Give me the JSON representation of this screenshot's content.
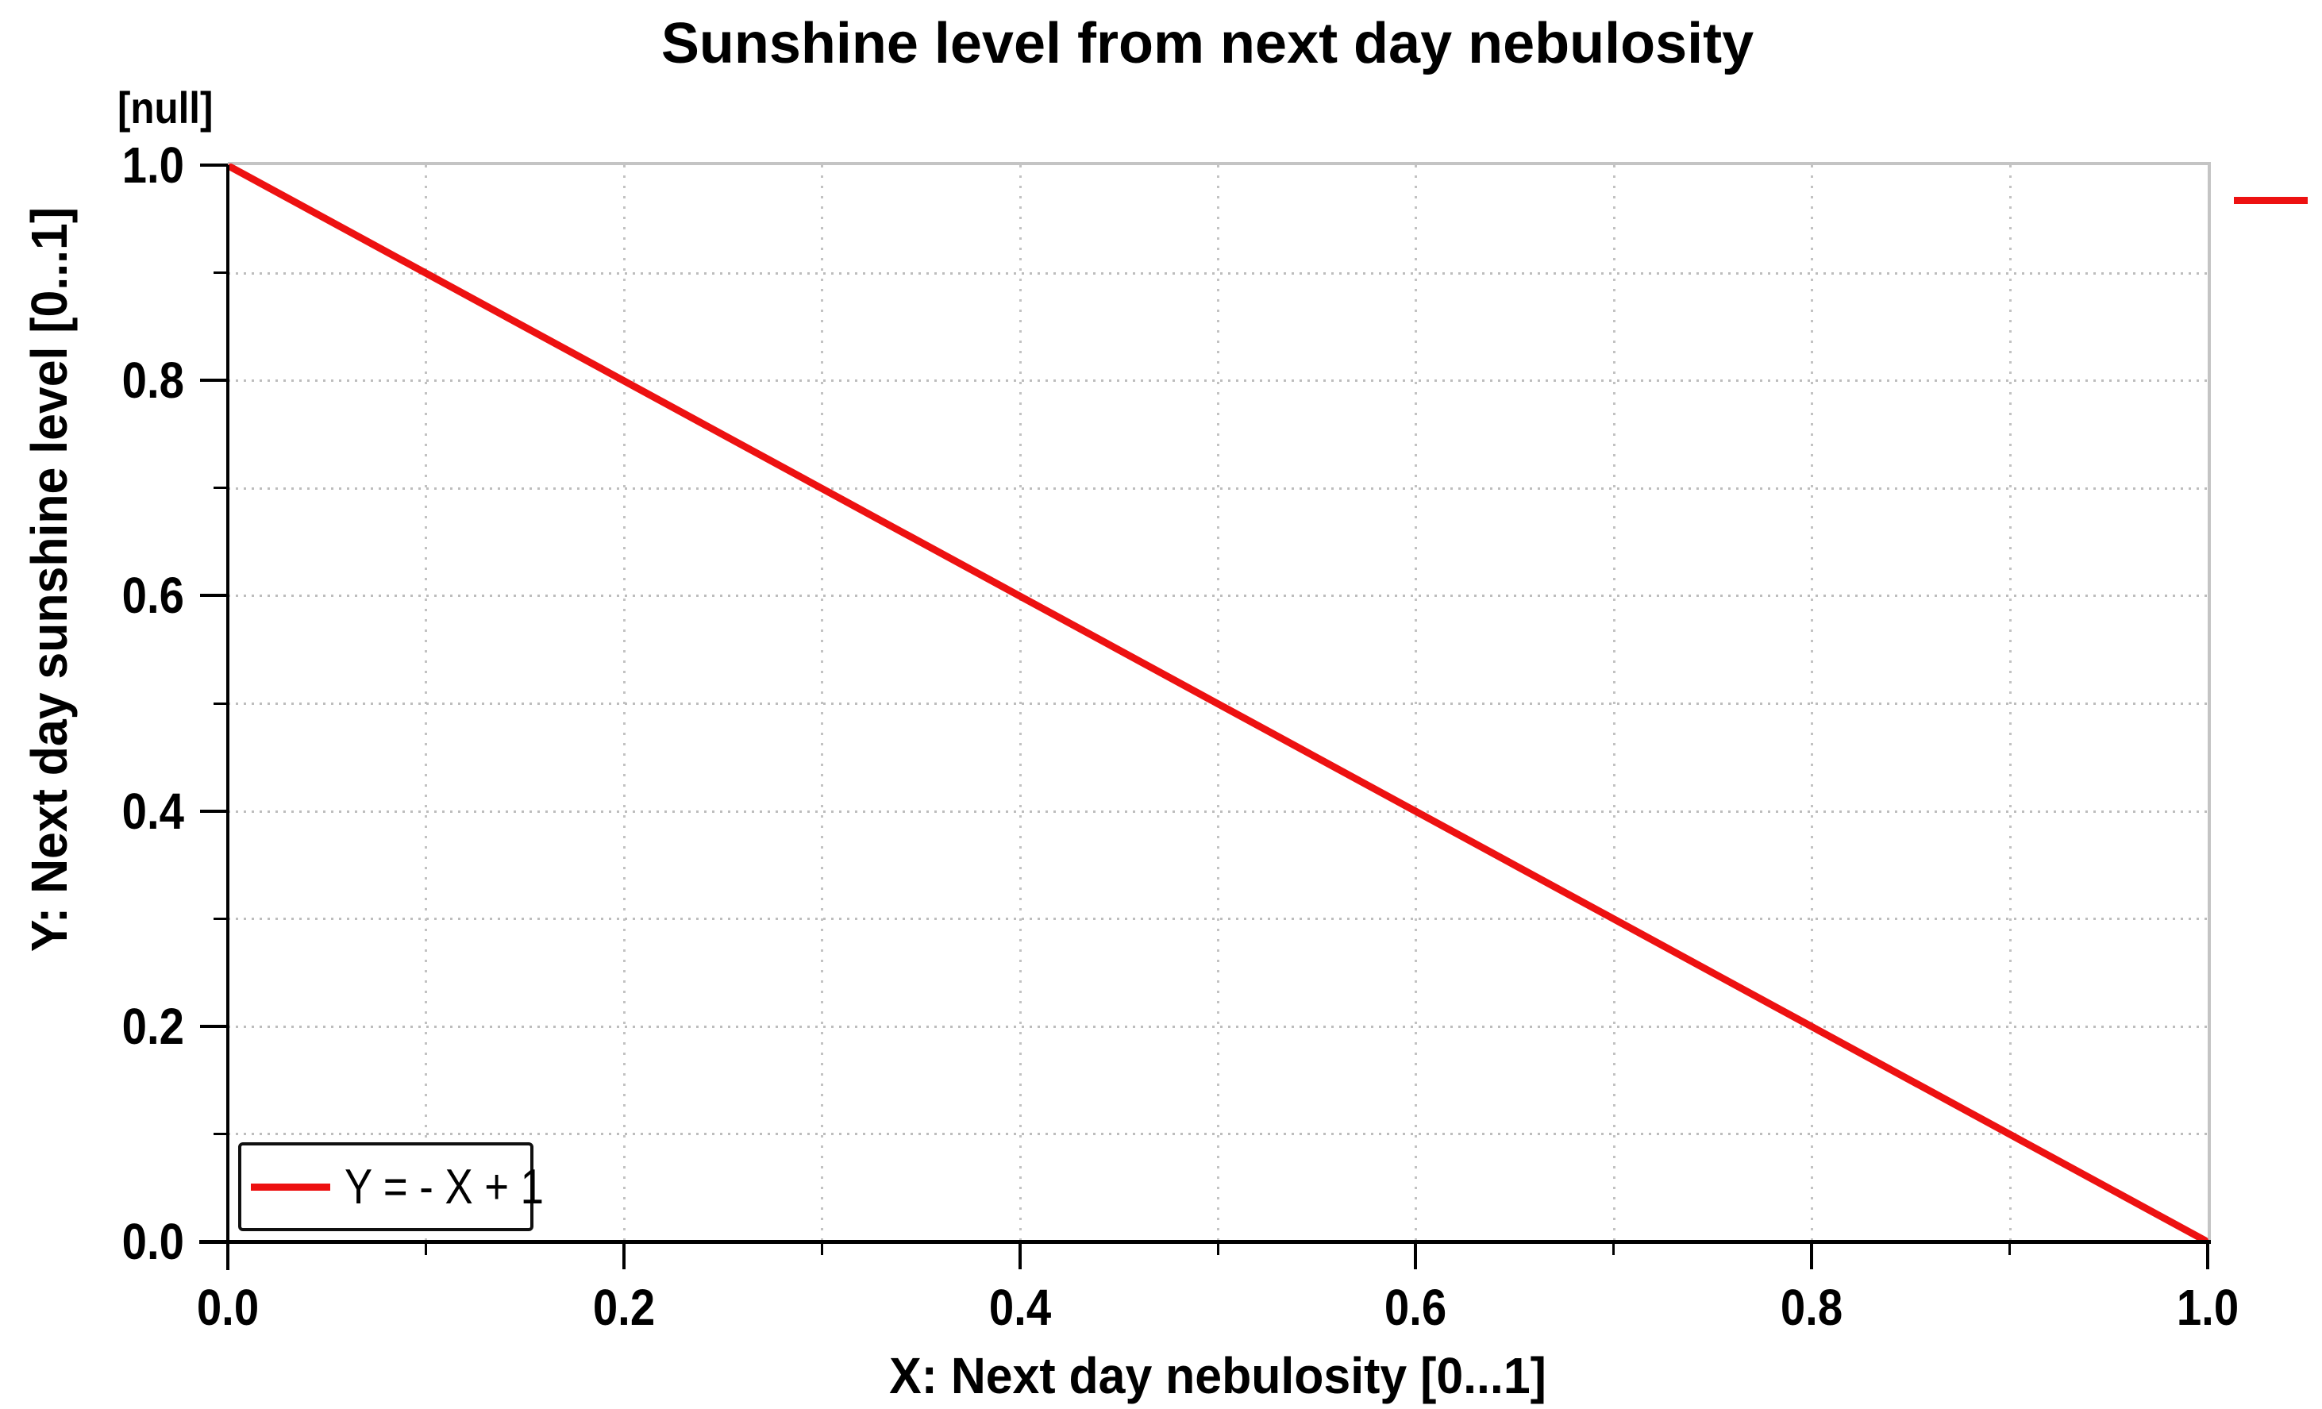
{
  "figure": {
    "title": "Sunshine level from next day nebulosity",
    "unit_label": "[null]",
    "x_axis_label": "X: Next day nebulosity [0...1]",
    "y_axis_label": "Y: Next day sunshine level [0...1]"
  },
  "legend": {
    "series_label": "Y = - X + 1",
    "swatch_color": "#ed1111",
    "outside_swatch_color": "#ed1111",
    "position": "bottom-left"
  },
  "chart_data": {
    "type": "line",
    "title": "Sunshine level from next day nebulosity",
    "xlabel": "X: Next day nebulosity [0...1]",
    "ylabel": "Y: Next day sunshine level [0...1]",
    "y_unit_annotation": "[null]",
    "xlim": [
      0,
      1
    ],
    "ylim": [
      0,
      1
    ],
    "x_ticks": [
      {
        "v": 0.0,
        "label": "0.0"
      },
      {
        "v": 0.2,
        "label": "0.2"
      },
      {
        "v": 0.4,
        "label": "0.4"
      },
      {
        "v": 0.6,
        "label": "0.6"
      },
      {
        "v": 0.8,
        "label": "0.8"
      },
      {
        "v": 1.0,
        "label": "1.0"
      }
    ],
    "x_minor_ticks": [
      0.1,
      0.3,
      0.5,
      0.7,
      0.9
    ],
    "y_ticks": [
      {
        "v": 0.0,
        "label": "0.0"
      },
      {
        "v": 0.2,
        "label": "0.2"
      },
      {
        "v": 0.4,
        "label": "0.4"
      },
      {
        "v": 0.6,
        "label": "0.6"
      },
      {
        "v": 0.8,
        "label": "0.8"
      },
      {
        "v": 1.0,
        "label": "1.0"
      }
    ],
    "y_minor_ticks": [
      0.1,
      0.3,
      0.5,
      0.7,
      0.9
    ],
    "grid": {
      "x": [
        0.1,
        0.2,
        0.3,
        0.4,
        0.5,
        0.6,
        0.7,
        0.8,
        0.9
      ],
      "y": [
        0.1,
        0.2,
        0.3,
        0.4,
        0.5,
        0.6,
        0.7,
        0.8,
        0.9
      ],
      "style": "dotted",
      "color": "#c2c2c2"
    },
    "series": [
      {
        "name": "Y = - X + 1",
        "color": "#ed1111",
        "points": [
          [
            0,
            1
          ],
          [
            1,
            0
          ]
        ]
      }
    ],
    "legend_position": "bottom-left"
  }
}
